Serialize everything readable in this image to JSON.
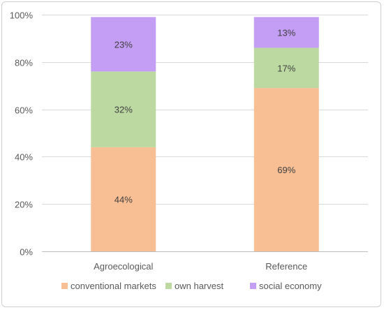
{
  "chart_data": {
    "type": "bar",
    "stacked": true,
    "categories": [
      "Agroecological",
      "Reference"
    ],
    "series": [
      {
        "name": "conventional markets",
        "color": "#f8bf95",
        "values": [
          44,
          69
        ],
        "labels": [
          "44%",
          "69%"
        ]
      },
      {
        "name": "own harvest",
        "color": "#bcd9a2",
        "values": [
          32,
          17
        ],
        "labels": [
          "32%",
          "17%"
        ]
      },
      {
        "name": "social economy",
        "color": "#c49df4",
        "values": [
          23,
          13
        ],
        "labels": [
          "23%",
          "13%"
        ]
      }
    ],
    "ylim": [
      0,
      100
    ],
    "yticks": [
      0,
      20,
      40,
      60,
      80,
      100
    ],
    "ytick_labels": [
      "0%",
      "20%",
      "40%",
      "60%",
      "80%",
      "100%"
    ],
    "grid": true,
    "legend": "bottom"
  }
}
